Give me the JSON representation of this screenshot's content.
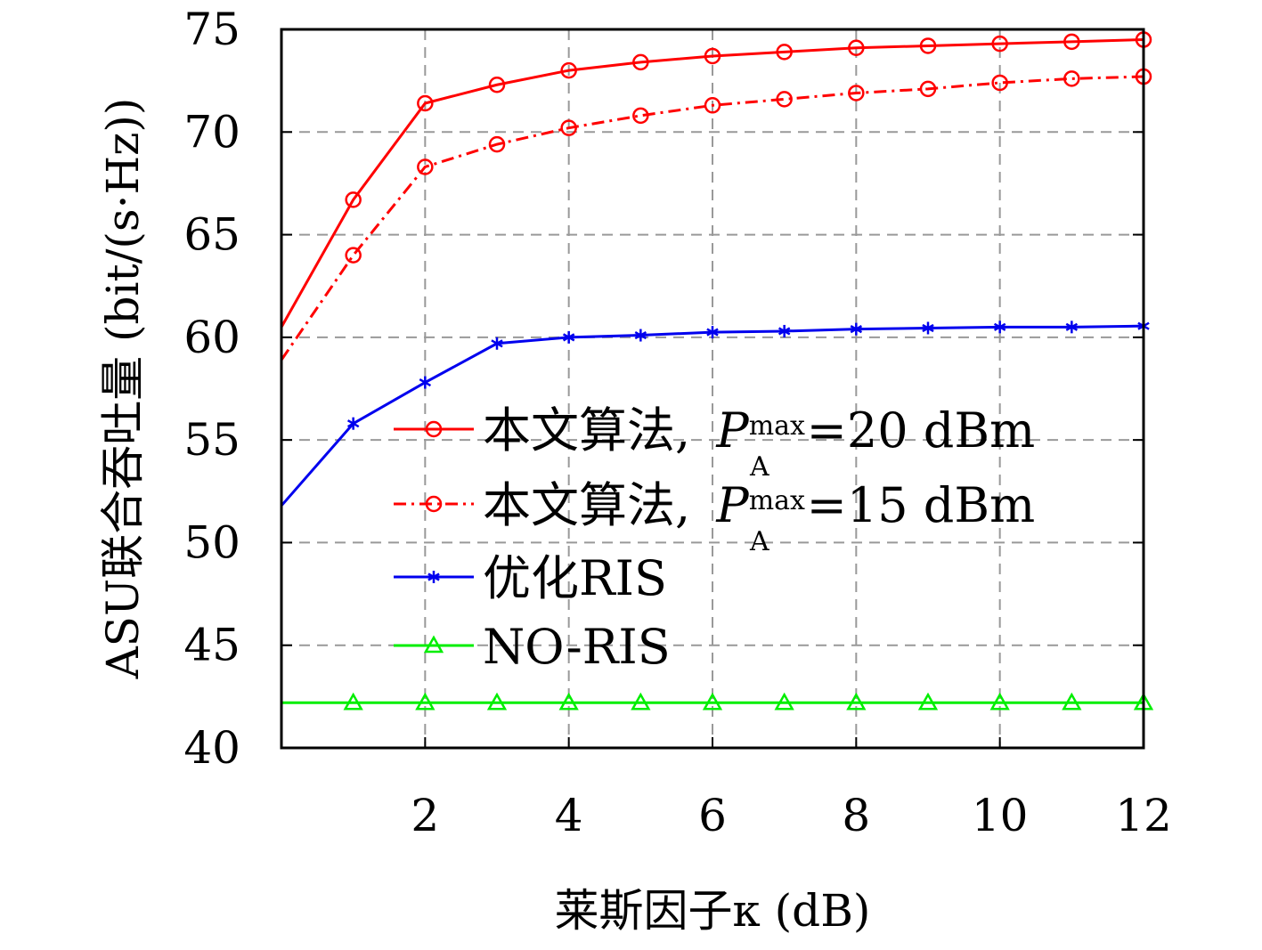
{
  "chart_data": {
    "type": "line",
    "title": "",
    "xlabel": "莱斯因子κ (dB)",
    "ylabel": "ASU联合吞吐量 (bit/(s·Hz))",
    "xlim": [
      0,
      12
    ],
    "ylim": [
      40,
      75
    ],
    "xticks": [
      2,
      4,
      6,
      8,
      10,
      12
    ],
    "yticks": [
      40,
      45,
      50,
      55,
      60,
      65,
      70,
      75
    ],
    "grid": true,
    "legend_position": "center-right",
    "x": [
      0,
      1,
      2,
      3,
      4,
      5,
      6,
      7,
      8,
      9,
      10,
      11,
      12
    ],
    "series": [
      {
        "name": "本文算法, P_A^max=20 dBm",
        "color": "#ff0000",
        "dash": "solid",
        "marker": "circle",
        "label": {
          "prefix": "本文算法, ",
          "sym": "P",
          "sub": "A",
          "sup": "max",
          "suffix": "=20 dBm"
        },
        "values": [
          60.5,
          66.7,
          71.4,
          72.3,
          73.0,
          73.4,
          73.7,
          73.9,
          74.1,
          74.2,
          74.3,
          74.4,
          74.5
        ]
      },
      {
        "name": "本文算法, P_A^max=15 dBm",
        "color": "#ff0000",
        "dash": "dashdot",
        "marker": "circle",
        "label": {
          "prefix": "本文算法, ",
          "sym": "P",
          "sub": "A",
          "sup": "max",
          "suffix": "=15 dBm"
        },
        "values": [
          58.9,
          64.0,
          68.3,
          69.4,
          70.2,
          70.8,
          71.3,
          71.6,
          71.9,
          72.1,
          72.4,
          72.6,
          72.7
        ]
      },
      {
        "name": "优化RIS",
        "color": "#0000ee",
        "dash": "solid",
        "marker": "star",
        "label": {
          "prefix": "优化RIS"
        },
        "values": [
          51.8,
          55.8,
          57.8,
          59.7,
          60.0,
          60.1,
          60.25,
          60.3,
          60.4,
          60.45,
          60.5,
          60.5,
          60.55
        ]
      },
      {
        "name": "NO-RIS",
        "color": "#00ee00",
        "dash": "solid",
        "marker": "triangle",
        "label": {
          "prefix": "NO-RIS"
        },
        "values": [
          42.2,
          42.2,
          42.2,
          42.2,
          42.2,
          42.2,
          42.2,
          42.2,
          42.2,
          42.2,
          42.2,
          42.2,
          42.2
        ]
      }
    ]
  }
}
